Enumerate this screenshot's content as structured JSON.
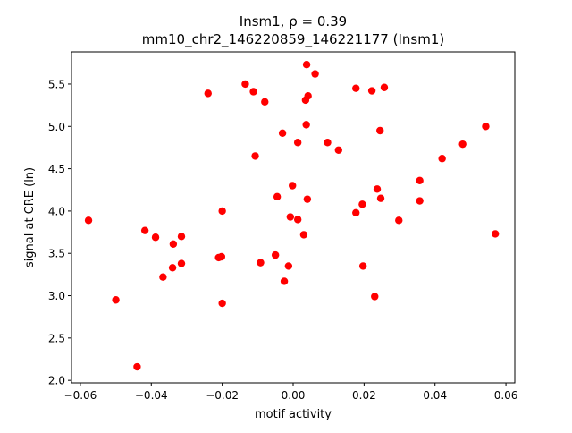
{
  "chart_data": {
    "type": "scatter",
    "title_line1": "Insm1, ρ = 0.39",
    "title_line2": "mm10_chr2_146220859_146221177 (Insm1)",
    "xlabel": "motif activity",
    "ylabel": "signal at CRE (ln)",
    "xlim": [
      -0.0625,
      0.0625
    ],
    "ylim": [
      1.97,
      5.88
    ],
    "xticks": [
      -0.06,
      -0.04,
      -0.02,
      0.0,
      0.02,
      0.04,
      0.06
    ],
    "xtick_labels": [
      "−0.06",
      "−0.04",
      "−0.02",
      "0.00",
      "0.02",
      "0.04",
      "0.06"
    ],
    "yticks": [
      2.0,
      2.5,
      3.0,
      3.5,
      4.0,
      4.5,
      5.0,
      5.5
    ],
    "ytick_labels": [
      "2.0",
      "2.5",
      "3.0",
      "3.5",
      "4.0",
      "4.5",
      "5.0",
      "5.5"
    ],
    "grid": false,
    "legend": "none",
    "marker_color": "#ff0000",
    "points": [
      {
        "x": -0.0577,
        "y": 3.89
      },
      {
        "x": -0.05,
        "y": 2.95
      },
      {
        "x": -0.044,
        "y": 2.16
      },
      {
        "x": -0.0418,
        "y": 3.77
      },
      {
        "x": -0.0388,
        "y": 3.69
      },
      {
        "x": -0.0367,
        "y": 3.22
      },
      {
        "x": -0.034,
        "y": 3.33
      },
      {
        "x": -0.0338,
        "y": 3.61
      },
      {
        "x": -0.0315,
        "y": 3.7
      },
      {
        "x": -0.0315,
        "y": 3.38
      },
      {
        "x": -0.024,
        "y": 5.39
      },
      {
        "x": -0.021,
        "y": 3.45
      },
      {
        "x": -0.0202,
        "y": 3.46
      },
      {
        "x": -0.02,
        "y": 4.0
      },
      {
        "x": -0.02,
        "y": 2.91
      },
      {
        "x": -0.0135,
        "y": 5.5
      },
      {
        "x": -0.0112,
        "y": 5.41
      },
      {
        "x": -0.0107,
        "y": 4.65
      },
      {
        "x": -0.0092,
        "y": 3.39
      },
      {
        "x": -0.008,
        "y": 5.29
      },
      {
        "x": -0.005,
        "y": 3.48
      },
      {
        "x": -0.0045,
        "y": 4.17
      },
      {
        "x": -0.003,
        "y": 4.92
      },
      {
        "x": -0.0025,
        "y": 3.17
      },
      {
        "x": -0.0013,
        "y": 3.35
      },
      {
        "x": -0.0008,
        "y": 3.93
      },
      {
        "x": -0.0002,
        "y": 4.3
      },
      {
        "x": 0.0013,
        "y": 3.9
      },
      {
        "x": 0.0013,
        "y": 4.81
      },
      {
        "x": 0.003,
        "y": 3.72
      },
      {
        "x": 0.0035,
        "y": 5.31
      },
      {
        "x": 0.0037,
        "y": 5.02
      },
      {
        "x": 0.0038,
        "y": 5.73
      },
      {
        "x": 0.004,
        "y": 4.14
      },
      {
        "x": 0.0042,
        "y": 5.36
      },
      {
        "x": 0.0062,
        "y": 5.62
      },
      {
        "x": 0.0097,
        "y": 4.81
      },
      {
        "x": 0.0128,
        "y": 4.72
      },
      {
        "x": 0.0177,
        "y": 5.45
      },
      {
        "x": 0.0177,
        "y": 3.98
      },
      {
        "x": 0.0195,
        "y": 4.08
      },
      {
        "x": 0.0197,
        "y": 3.35
      },
      {
        "x": 0.0222,
        "y": 5.42
      },
      {
        "x": 0.023,
        "y": 2.99
      },
      {
        "x": 0.0237,
        "y": 4.26
      },
      {
        "x": 0.0245,
        "y": 4.95
      },
      {
        "x": 0.0247,
        "y": 4.15
      },
      {
        "x": 0.0257,
        "y": 5.46
      },
      {
        "x": 0.0298,
        "y": 3.89
      },
      {
        "x": 0.0357,
        "y": 4.36
      },
      {
        "x": 0.0357,
        "y": 4.12
      },
      {
        "x": 0.042,
        "y": 4.62
      },
      {
        "x": 0.0478,
        "y": 4.79
      },
      {
        "x": 0.0543,
        "y": 5.0
      },
      {
        "x": 0.057,
        "y": 3.73
      }
    ]
  }
}
